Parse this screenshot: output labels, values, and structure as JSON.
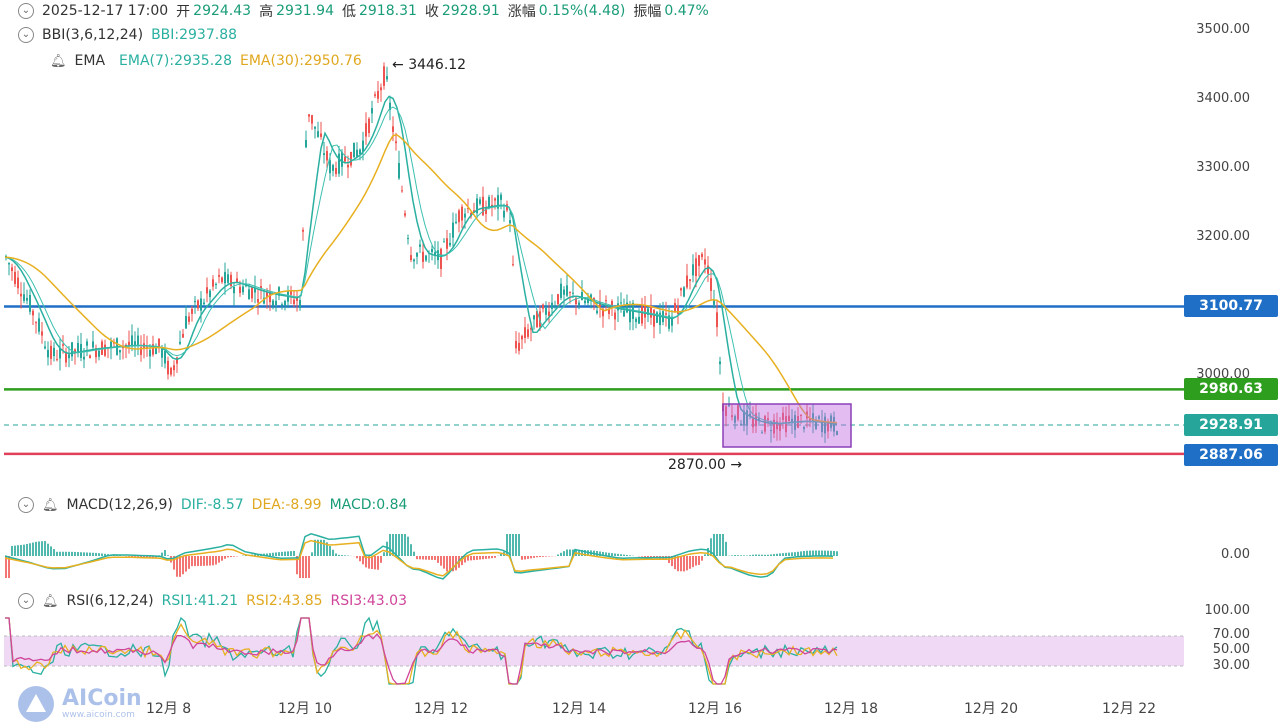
{
  "info": {
    "datetime": "2025-12-17 17:00",
    "open_label": "开",
    "open": "2924.43",
    "high_label": "高",
    "high": "2931.94",
    "low_label": "低",
    "low": "2918.31",
    "close_label": "收",
    "close": "2928.91",
    "change_label": "涨幅",
    "change": "0.15%(4.48)",
    "amp_label": "振幅",
    "amp": "0.47%"
  },
  "bbi": {
    "label": "BBI(3,6,12,24)",
    "value": "BBI:2937.88"
  },
  "ema": {
    "label": "EMA",
    "ema7": "EMA(7):2935.28",
    "ema30": "EMA(30):2950.76"
  },
  "macd": {
    "label": "MACD(12,26,9)",
    "dif": "DIF:-8.57",
    "dea": "DEA:-8.99",
    "macd": "MACD:0.84"
  },
  "rsi": {
    "label": "RSI(6,12,24)",
    "rsi1": "RSI1:41.21",
    "rsi2": "RSI2:43.85",
    "rsi3": "RSI3:43.03"
  },
  "price_axis": [
    "3500.00",
    "3400.00",
    "3300.00",
    "3200.00",
    "3000.00"
  ],
  "macd_axis": [
    "0.00"
  ],
  "rsi_axis": [
    "100.00",
    "70.00",
    "50.00",
    "30.00"
  ],
  "x_axis": [
    "12月 8",
    "12月 10",
    "12月 12",
    "12月 14",
    "12月 16",
    "12月 18",
    "12月 20",
    "12月 22"
  ],
  "tags": {
    "blue": "3100.77",
    "green": "2980.63",
    "current": "2928.91",
    "red": "2887.06"
  },
  "annotations": {
    "high_mark": "3446.12",
    "low_mark": "2870.00"
  },
  "logo": {
    "brand": "AICoin",
    "sub": "www.aicoin.com"
  },
  "colors": {
    "up": "#26a69a",
    "down": "#ef5350",
    "blue_line": "#1f6fc6",
    "green_line": "#2e9e1f",
    "red_line": "#e0405a",
    "ema7": "#2ab0a0",
    "ema30": "#e8b020",
    "box": "#c06de0"
  },
  "chart_data": {
    "type": "candlestick",
    "y_unit": "price",
    "price_range": [
      2860,
      3520
    ],
    "horizontal_levels": [
      3100.77,
      2980.63,
      2928.91,
      2887.06
    ],
    "high": 3446.12,
    "low": 2870.0
  }
}
